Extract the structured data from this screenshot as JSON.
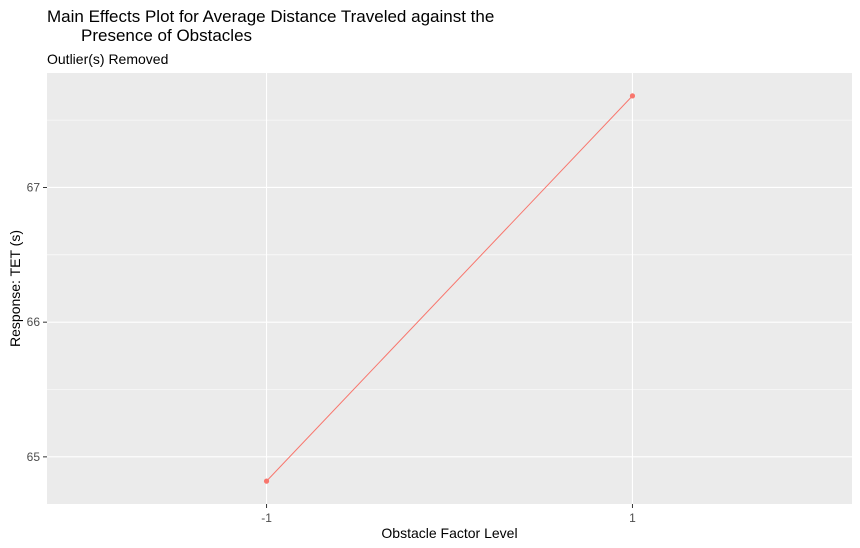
{
  "chart_data": {
    "type": "line",
    "title_lines": [
      "Main Effects Plot for Average Distance Traveled against the",
      "Presence of Obstacles"
    ],
    "subtitle": "Outlier(s) Removed",
    "xlabel": "Obstacle Factor Level",
    "ylabel": "Response: TET (s)",
    "categories": [
      "-1",
      "1"
    ],
    "series": [
      {
        "values": [
          64.82,
          67.68
        ]
      }
    ],
    "yticks": [
      "65",
      "66",
      "67"
    ],
    "ylim": [
      64.65,
      67.85
    ],
    "grid": true,
    "colors": {
      "series": "#f8766d",
      "panel": "#ebebeb",
      "grid": "#ffffff"
    }
  }
}
